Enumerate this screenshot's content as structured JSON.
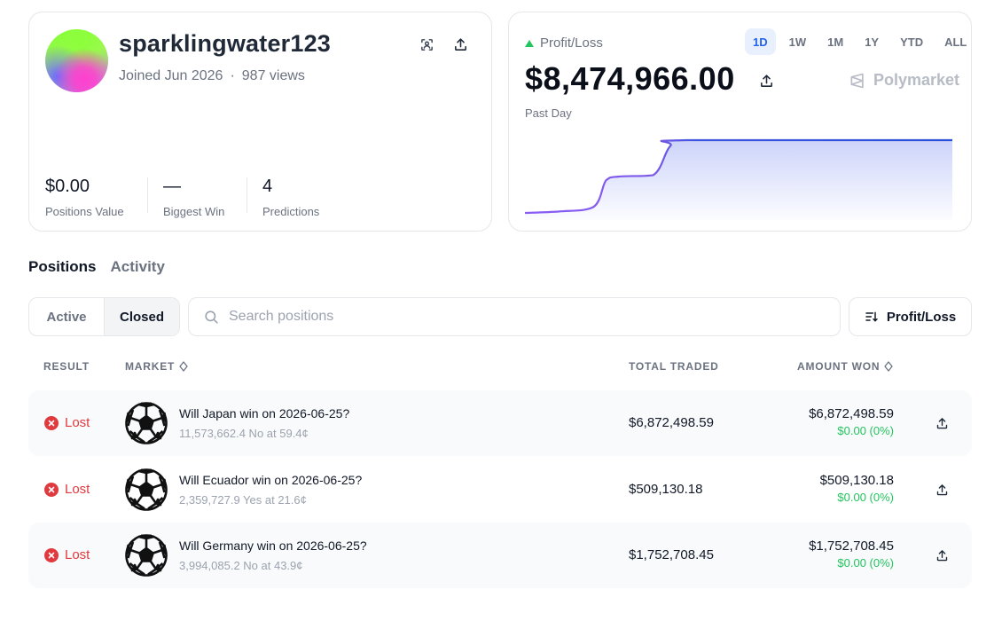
{
  "profile": {
    "username": "sparklingwater123",
    "joined": "Joined Jun 2026",
    "separator": "·",
    "views": "987 views",
    "stats": [
      {
        "value": "$0.00",
        "label": "Positions Value"
      },
      {
        "value": "—",
        "label": "Biggest Win"
      },
      {
        "value": "4",
        "label": "Predictions"
      }
    ],
    "icons": {
      "scan": "scan-icon",
      "share": "share-icon"
    }
  },
  "pnl": {
    "label": "Profit/Loss",
    "trend": "up",
    "ranges": [
      "1D",
      "1W",
      "1M",
      "1Y",
      "YTD",
      "ALL"
    ],
    "active_range": "1D",
    "value": "$8,474,966.00",
    "period": "Past Day",
    "brand": "Polymarket",
    "line_color_start": "#8b5cf6",
    "line_color_end": "#2b50d9",
    "trend_color": "#22c55e"
  },
  "chart_data": {
    "type": "area",
    "x": [
      0,
      8,
      16,
      19,
      22,
      30,
      34,
      38,
      100
    ],
    "values": [
      0,
      0.02,
      0.08,
      0.45,
      0.5,
      0.52,
      0.92,
      1,
      1
    ],
    "xlabel": "",
    "ylabel": "",
    "grid": false
  },
  "tabs": {
    "items": [
      "Positions",
      "Activity"
    ],
    "active": "Positions"
  },
  "toolbar": {
    "filters": [
      "Active",
      "Closed"
    ],
    "active_filter": "Closed",
    "search_placeholder": "Search positions",
    "sort_label": "Profit/Loss"
  },
  "table": {
    "headers": {
      "result": "RESULT",
      "market": "MARKET",
      "total": "TOTAL TRADED",
      "won": "AMOUNT WON"
    },
    "rows": [
      {
        "result": "Lost",
        "title": "Will Japan win on 2026-06-25?",
        "sub": "11,573,662.4 No at 59.4¢",
        "total": "$6,872,498.59",
        "won": "$6,872,498.59",
        "pnl": "$0.00 (0%)"
      },
      {
        "result": "Lost",
        "title": "Will Ecuador win on 2026-06-25?",
        "sub": "2,359,727.9 Yes at 21.6¢",
        "total": "$509,130.18",
        "won": "$509,130.18",
        "pnl": "$0.00 (0%)"
      },
      {
        "result": "Lost",
        "title": "Will Germany win on 2026-06-25?",
        "sub": "3,994,085.2 No at 43.9¢",
        "total": "$1,752,708.45",
        "won": "$1,752,708.45",
        "pnl": "$0.00 (0%)"
      }
    ]
  },
  "colors": {
    "lost": "#e0393e",
    "gain": "#22c55e",
    "accent": "#2563eb"
  }
}
